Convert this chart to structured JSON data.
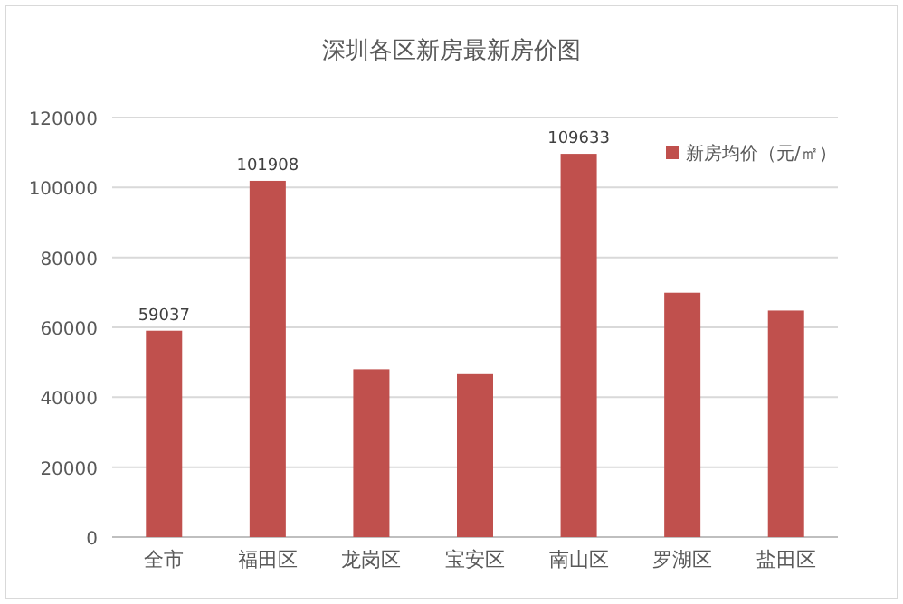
{
  "chart_data": {
    "type": "bar",
    "title": "深圳各区新房最新房价图",
    "categories": [
      "全市",
      "福田区",
      "龙岗区",
      "宝安区",
      "南山区",
      "罗湖区",
      "盐田区"
    ],
    "series": [
      {
        "name": "新房均价（元/㎡）",
        "color": "#c0504d",
        "values": [
          59037,
          101908,
          48000,
          46600,
          109633,
          69900,
          64800
        ],
        "value_labels": [
          "59037",
          "101908",
          null,
          null,
          "109633",
          null,
          null
        ]
      }
    ],
    "ylim": [
      0,
      120000
    ],
    "yticks": [
      0,
      20000,
      40000,
      60000,
      80000,
      100000,
      120000
    ],
    "grid": "y",
    "legend": "top right"
  }
}
